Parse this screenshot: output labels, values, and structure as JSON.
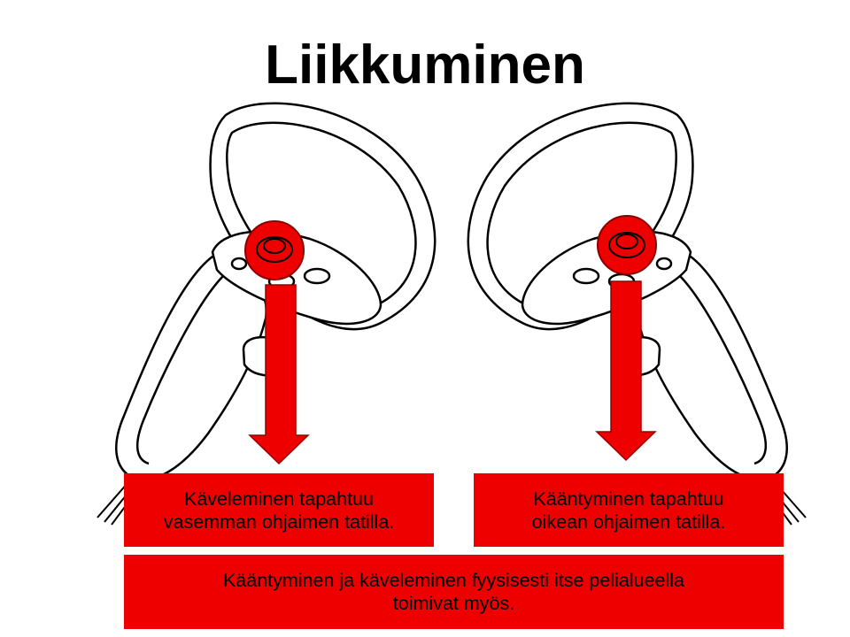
{
  "slide": {
    "title": "Liikkuminen",
    "boxes": {
      "left": {
        "line1": "Käveleminen tapahtuu",
        "line2": "vasemman ohjaimen tatilla."
      },
      "right": {
        "line1": "Kääntyminen tapahtuu",
        "line2": "oikean ohjaimen tatilla."
      },
      "bottom": {
        "line1": "Kääntyminen ja käveleminen fyysisesti itse pelialueella",
        "line2": "toimivat myös."
      }
    }
  },
  "colors": {
    "accent": "#ee0000",
    "line": "#000000",
    "background": "#ffffff"
  },
  "icons": {
    "left_controller": "vr-controller-left-icon",
    "right_controller": "vr-controller-right-icon",
    "arrow": "arrow-down-icon"
  }
}
